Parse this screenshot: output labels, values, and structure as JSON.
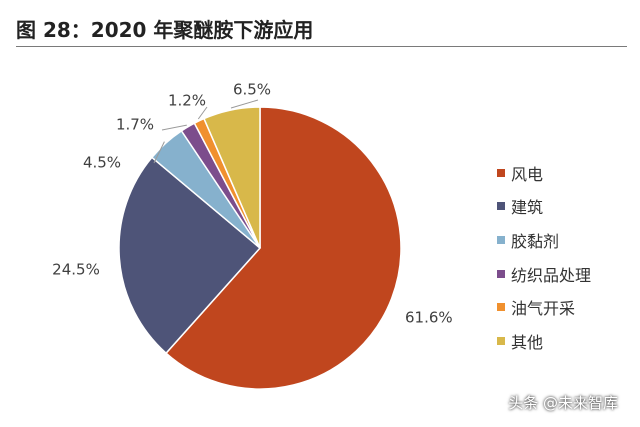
{
  "title": "图 28：2020 年聚醚胺下游应用",
  "watermark": "头条 @未来智库",
  "chart_data": {
    "type": "pie",
    "title": "图 28：2020 年聚醚胺下游应用",
    "legend_position": "right",
    "slices": [
      {
        "name": "风电",
        "value": 61.6,
        "label": "61.6%",
        "color": "#c0461e"
      },
      {
        "name": "建筑",
        "value": 24.5,
        "label": "24.5%",
        "color": "#4e5478"
      },
      {
        "name": "胶黏剂",
        "value": 4.5,
        "label": "4.5%",
        "color": "#86b1cd"
      },
      {
        "name": "纺织品处理",
        "value": 1.7,
        "label": "1.7%",
        "color": "#7c4d8c"
      },
      {
        "name": "油气开采",
        "value": 1.2,
        "label": "1.2%",
        "color": "#f0902e"
      },
      {
        "name": "其他",
        "value": 6.5,
        "label": "6.5%",
        "color": "#d8b84a"
      }
    ]
  }
}
